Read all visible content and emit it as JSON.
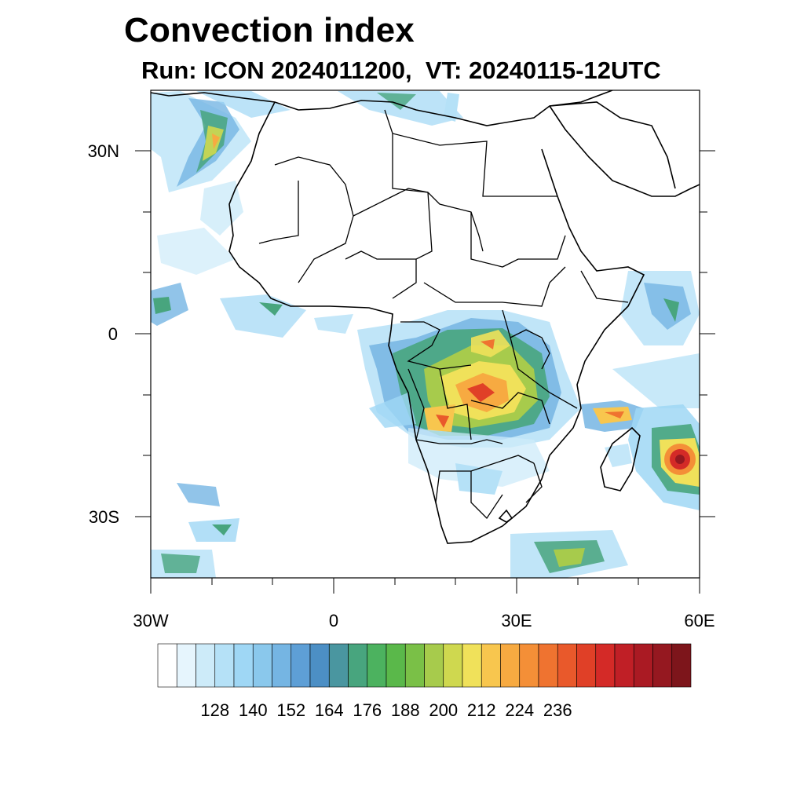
{
  "title": "Convection index",
  "subtitle": "Run: ICON 2024011200,  VT: 20240115-12UTC",
  "axes": {
    "lon_labels": [
      "30W",
      "0",
      "30E",
      "60E"
    ],
    "lat_labels": [
      "30N",
      "0",
      "30S"
    ],
    "lon_range": [
      -30,
      60
    ],
    "lat_range": [
      -40,
      40
    ]
  },
  "colorbar": {
    "labels": [
      "128",
      "140",
      "152",
      "164",
      "176",
      "188",
      "200",
      "212",
      "224",
      "236"
    ],
    "colors": [
      "#ffffff",
      "#e6f5fd",
      "#cdebf9",
      "#b5e1f7",
      "#9fd7f5",
      "#8ac8ec",
      "#75b5e3",
      "#5e9fd6",
      "#4c8fc5",
      "#4a96a0",
      "#48a57e",
      "#4cb25f",
      "#5ab84a",
      "#7ac047",
      "#a7cb4c",
      "#cfd84f",
      "#f0e15a",
      "#f8c64e",
      "#f7aa41",
      "#f48f37",
      "#ef7330",
      "#e9592b",
      "#e04027",
      "#d42a27",
      "#c01f26",
      "#aa1a23",
      "#951820",
      "#7d151b"
    ]
  }
}
